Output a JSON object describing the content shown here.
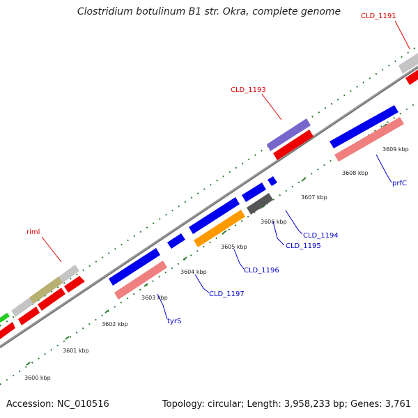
{
  "title": "Clostridium botulinum B1 str. Okra, complete genome",
  "footer": {
    "accession": "Accession: NC_010516",
    "summary": "Topology: circular; Length: 3,958,233 bp; Genes: 3,761"
  },
  "colors": {
    "backbone": "#7a7a7a",
    "tick": "#2e7d32",
    "label_red": "#dd0000",
    "label_blue": "#0000cc"
  },
  "ticks": [
    {
      "label": "3600 kbp"
    },
    {
      "label": "3601 kbp"
    },
    {
      "label": "3602 kbp"
    },
    {
      "label": "3603 kbp"
    },
    {
      "label": "3604 kbp"
    },
    {
      "label": "3605 kbp"
    },
    {
      "label": "3606 kbp"
    },
    {
      "label": "3607 kbp"
    },
    {
      "label": "3608 kbp"
    },
    {
      "label": "3609 kbp"
    }
  ],
  "gene_labels": [
    {
      "name": "riml",
      "color": "red"
    },
    {
      "name": "CLD_1193",
      "color": "red"
    },
    {
      "name": "CLD_1191",
      "color": "red"
    },
    {
      "name": "tyrS",
      "color": "blue"
    },
    {
      "name": "CLD_1197",
      "color": "blue"
    },
    {
      "name": "CLD_1196",
      "color": "blue"
    },
    {
      "name": "CLD_1195",
      "color": "blue"
    },
    {
      "name": "CLD_1194",
      "color": "blue"
    },
    {
      "name": "prfC",
      "color": "blue"
    }
  ]
}
